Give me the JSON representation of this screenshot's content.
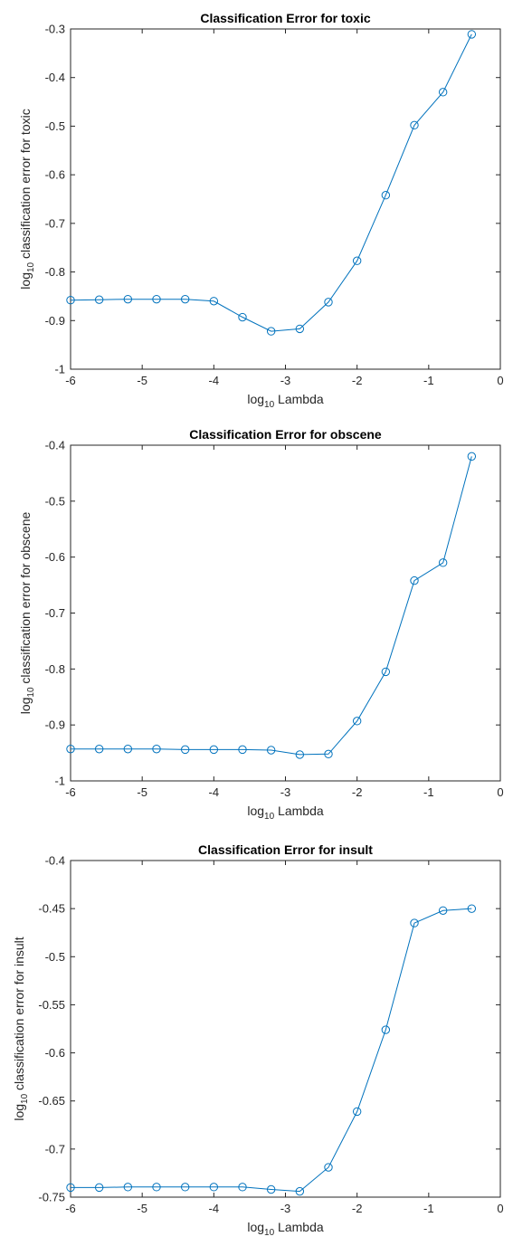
{
  "chart_data": [
    {
      "type": "line",
      "title": "Classification Error for toxic",
      "xlabel": {
        "base": "log",
        "subscript": "10",
        "rest": " Lambda"
      },
      "ylabel": {
        "base": "log",
        "subscript": "10",
        "rest": " classification error for toxic"
      },
      "xlim": [
        -6,
        0
      ],
      "ylim": [
        -1,
        -0.3
      ],
      "xticks": [
        -6,
        -5,
        -4,
        -3,
        -2,
        -1,
        0
      ],
      "xtick_labels": [
        "-6",
        "-5",
        "-4",
        "-3",
        "-2",
        "-1",
        "0"
      ],
      "yticks": [
        -1,
        -0.9,
        -0.8,
        -0.7,
        -0.6,
        -0.5,
        -0.4,
        -0.3
      ],
      "ytick_labels": [
        "-1",
        "-0.9",
        "-0.8",
        "-0.7",
        "-0.6",
        "-0.5",
        "-0.4",
        "-0.3"
      ],
      "grid": false,
      "marker": "circle",
      "color": "#0072BD",
      "x": [
        -6,
        -5.6,
        -5.2,
        -4.8,
        -4.4,
        -4,
        -3.6,
        -3.2,
        -2.8,
        -2.4,
        -2,
        -1.6,
        -1.2,
        -0.8,
        -0.4
      ],
      "y": [
        -0.858,
        -0.857,
        -0.856,
        -0.856,
        -0.856,
        -0.86,
        -0.893,
        -0.922,
        -0.917,
        -0.862,
        -0.777,
        -0.642,
        -0.498,
        -0.43,
        -0.311
      ]
    },
    {
      "type": "line",
      "title": "Classification Error for obscene",
      "xlabel": {
        "base": "log",
        "subscript": "10",
        "rest": " Lambda"
      },
      "ylabel": {
        "base": "log",
        "subscript": "10",
        "rest": " classification error for obscene"
      },
      "xlim": [
        -6,
        0
      ],
      "ylim": [
        -1,
        -0.4
      ],
      "xticks": [
        -6,
        -5,
        -4,
        -3,
        -2,
        -1,
        0
      ],
      "xtick_labels": [
        "-6",
        "-5",
        "-4",
        "-3",
        "-2",
        "-1",
        "0"
      ],
      "yticks": [
        -1,
        -0.9,
        -0.8,
        -0.7,
        -0.6,
        -0.5,
        -0.4
      ],
      "ytick_labels": [
        "-1",
        "-0.9",
        "-0.8",
        "-0.7",
        "-0.6",
        "-0.5",
        "-0.4"
      ],
      "grid": false,
      "marker": "circle",
      "color": "#0072BD",
      "x": [
        -6,
        -5.6,
        -5.2,
        -4.8,
        -4.4,
        -4,
        -3.6,
        -3.2,
        -2.8,
        -2.4,
        -2,
        -1.6,
        -1.2,
        -0.8,
        -0.4
      ],
      "y": [
        -0.943,
        -0.943,
        -0.943,
        -0.943,
        -0.944,
        -0.944,
        -0.944,
        -0.945,
        -0.953,
        -0.952,
        -0.893,
        -0.805,
        -0.642,
        -0.61,
        -0.42
      ]
    },
    {
      "type": "line",
      "title": "Classification Error for insult",
      "xlabel": {
        "base": "log",
        "subscript": "10",
        "rest": " Lambda"
      },
      "ylabel": {
        "base": "log",
        "subscript": "10",
        "rest": " classification error for insult"
      },
      "xlim": [
        -6,
        0
      ],
      "ylim": [
        -0.75,
        -0.4
      ],
      "xticks": [
        -6,
        -5,
        -4,
        -3,
        -2,
        -1,
        0
      ],
      "xtick_labels": [
        "-6",
        "-5",
        "-4",
        "-3",
        "-2",
        "-1",
        "0"
      ],
      "yticks": [
        -0.75,
        -0.7,
        -0.65,
        -0.6,
        -0.55,
        -0.5,
        -0.45,
        -0.4
      ],
      "ytick_labels": [
        "-0.75",
        "-0.7",
        "-0.65",
        "-0.6",
        "-0.55",
        "-0.5",
        "-0.45",
        "-0.4"
      ],
      "grid": false,
      "marker": "circle",
      "color": "#0072BD",
      "x": [
        -6,
        -5.6,
        -5.2,
        -4.8,
        -4.4,
        -4,
        -3.6,
        -3.2,
        -2.8,
        -2.4,
        -2,
        -1.6,
        -1.2,
        -0.8,
        -0.4
      ],
      "y": [
        -0.74,
        -0.74,
        -0.7395,
        -0.7395,
        -0.7395,
        -0.7395,
        -0.7395,
        -0.742,
        -0.744,
        -0.719,
        -0.661,
        -0.576,
        -0.465,
        -0.452,
        -0.45
      ]
    }
  ]
}
